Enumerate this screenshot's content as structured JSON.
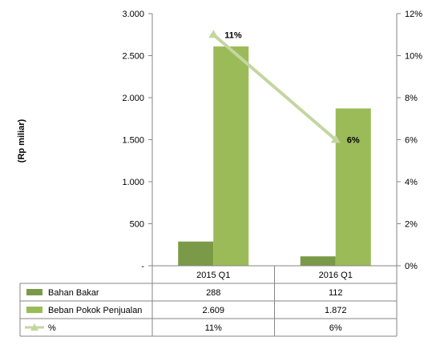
{
  "chart_data": {
    "type": "bar",
    "categories": [
      "2015 Q1",
      "2016 Q1"
    ],
    "ylabel": "(Rp miliar)",
    "y_left": {
      "range": [
        0,
        3000
      ],
      "ticks": [
        0,
        500,
        1000,
        1500,
        2000,
        2500,
        3000
      ],
      "tick_labels": [
        "-",
        "500",
        "1.000",
        "1.500",
        "2.000",
        "2.500",
        "3.000"
      ]
    },
    "y_right": {
      "range": [
        0,
        12
      ],
      "ticks": [
        0,
        2,
        4,
        6,
        8,
        10,
        12
      ],
      "tick_labels": [
        "0%",
        "2%",
        "4%",
        "6%",
        "8%",
        "10%",
        "12%"
      ]
    },
    "grid": false,
    "legend_placement": "data-table-below",
    "series": [
      {
        "name": "Bahan Bakar",
        "type": "bar",
        "axis": "left",
        "color": "#7a9a47",
        "values": [
          288,
          112
        ],
        "display": [
          "288",
          "112"
        ]
      },
      {
        "name": "Beban Pokok Penjualan",
        "type": "bar",
        "axis": "left",
        "color": "#9bbb59",
        "values": [
          2609,
          1872
        ],
        "display": [
          "2.609",
          "1.872"
        ]
      },
      {
        "name": "%",
        "type": "line",
        "axis": "right",
        "color": "#c4d6a0",
        "values": [
          11,
          6
        ],
        "display": [
          "11%",
          "6%"
        ],
        "point_labels": [
          "11%",
          "6%"
        ]
      }
    ]
  }
}
